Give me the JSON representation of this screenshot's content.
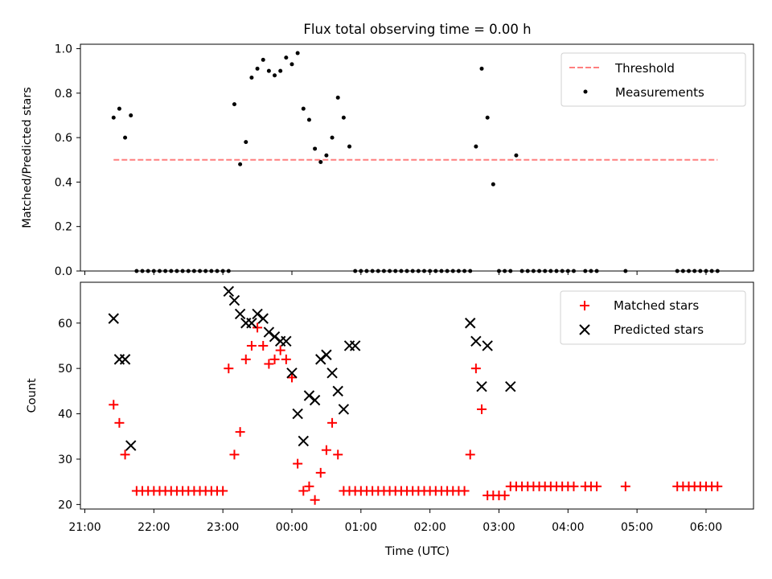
{
  "title": "Flux total observing time = 0.00 h",
  "chart_data": [
    {
      "type": "scatter",
      "ylabel": "Matched/Predicted stars",
      "xlabel": "",
      "ylim": [
        0.0,
        1.02
      ],
      "y_ticks": [
        "0.0",
        "0.2",
        "0.4",
        "0.6",
        "0.8",
        "1.0"
      ],
      "legend_position": "top-right",
      "grid": false,
      "series": [
        {
          "name": "Threshold",
          "style": "dashed-line",
          "color": "#ff7f7f",
          "x": [
            "21:25",
            "06:10"
          ],
          "y": [
            0.5,
            0.5
          ]
        },
        {
          "name": "Measurements",
          "style": "dot",
          "color": "#000000",
          "x": [
            "21:25",
            "21:30",
            "21:35",
            "21:40",
            "21:45",
            "21:50",
            "21:55",
            "22:00",
            "22:05",
            "22:10",
            "22:15",
            "22:20",
            "22:25",
            "22:30",
            "22:35",
            "22:40",
            "22:45",
            "22:50",
            "22:55",
            "23:00",
            "23:05",
            "23:10",
            "23:15",
            "23:20",
            "23:25",
            "23:30",
            "23:35",
            "23:40",
            "23:45",
            "23:50",
            "23:55",
            "00:00",
            "00:05",
            "00:10",
            "00:15",
            "00:20",
            "00:25",
            "00:30",
            "00:35",
            "00:40",
            "00:45",
            "00:50",
            "00:55",
            "01:00",
            "01:05",
            "01:10",
            "01:15",
            "01:20",
            "01:25",
            "01:30",
            "01:35",
            "01:40",
            "01:45",
            "01:50",
            "01:55",
            "02:00",
            "02:05",
            "02:10",
            "02:15",
            "02:20",
            "02:25",
            "02:30",
            "02:35",
            "02:40",
            "02:45",
            "02:50",
            "02:55",
            "03:00",
            "03:05",
            "03:10",
            "03:15",
            "03:20",
            "03:25",
            "03:30",
            "03:35",
            "03:40",
            "03:45",
            "03:50",
            "03:55",
            "04:00",
            "04:05",
            "04:15",
            "04:20",
            "04:25",
            "04:50",
            "05:35",
            "05:40",
            "05:45",
            "05:50",
            "05:55",
            "06:00",
            "06:05",
            "06:10"
          ],
          "y": [
            0.69,
            0.73,
            0.6,
            0.7,
            0,
            0,
            0,
            0,
            0,
            0,
            0,
            0,
            0,
            0,
            0,
            0,
            0,
            0,
            0,
            0,
            0,
            0.75,
            0.48,
            0.58,
            0.87,
            0.91,
            0.95,
            0.9,
            0.88,
            0.9,
            0.96,
            0.93,
            0.98,
            0.73,
            0.68,
            0.55,
            0.49,
            0.52,
            0.6,
            0.78,
            0.69,
            0.56,
            0,
            0,
            0,
            0,
            0,
            0,
            0,
            0,
            0,
            0,
            0,
            0,
            0,
            0,
            0,
            0,
            0,
            0,
            0,
            0,
            0,
            0.56,
            0.91,
            0.69,
            0.39,
            0,
            0,
            0,
            0.52,
            0,
            0,
            0,
            0,
            0,
            0,
            0,
            0,
            0,
            0,
            0,
            0,
            0,
            0,
            0,
            0,
            0,
            0,
            0,
            0,
            0,
            0
          ]
        }
      ]
    },
    {
      "type": "scatter",
      "ylabel": "Count",
      "xlabel": "Time (UTC)",
      "ylim": [
        19,
        69
      ],
      "y_ticks": [
        "20",
        "30",
        "40",
        "50",
        "60"
      ],
      "x_ticks": [
        "21:00",
        "22:00",
        "23:00",
        "00:00",
        "01:00",
        "02:00",
        "03:00",
        "04:00",
        "05:00",
        "06:00"
      ],
      "legend_position": "top-right",
      "grid": false,
      "series": [
        {
          "name": "Matched stars",
          "marker": "plus",
          "color": "#ff0000",
          "x": [
            "21:25",
            "21:30",
            "21:35",
            "21:45",
            "21:50",
            "21:55",
            "22:00",
            "22:05",
            "22:10",
            "22:15",
            "22:20",
            "22:25",
            "22:30",
            "22:35",
            "22:40",
            "22:45",
            "22:50",
            "22:55",
            "23:00",
            "23:05",
            "23:10",
            "23:15",
            "23:20",
            "23:25",
            "23:30",
            "23:35",
            "23:40",
            "23:45",
            "23:50",
            "23:55",
            "00:00",
            "00:05",
            "00:10",
            "00:15",
            "00:20",
            "00:25",
            "00:30",
            "00:35",
            "00:40",
            "00:45",
            "00:50",
            "00:55",
            "01:00",
            "01:05",
            "01:10",
            "01:15",
            "01:20",
            "01:25",
            "01:30",
            "01:35",
            "01:40",
            "01:45",
            "01:50",
            "01:55",
            "02:00",
            "02:05",
            "02:10",
            "02:15",
            "02:20",
            "02:25",
            "02:30",
            "02:35",
            "02:40",
            "02:45",
            "02:50",
            "02:55",
            "03:00",
            "03:05",
            "03:10",
            "03:15",
            "03:20",
            "03:25",
            "03:30",
            "03:35",
            "03:40",
            "03:45",
            "03:50",
            "03:55",
            "04:00",
            "04:05",
            "04:15",
            "04:20",
            "04:25",
            "04:50",
            "05:35",
            "05:40",
            "05:45",
            "05:50",
            "05:55",
            "06:00",
            "06:05",
            "06:10"
          ],
          "y": [
            42,
            38,
            31,
            23,
            23,
            23,
            23,
            23,
            23,
            23,
            23,
            23,
            23,
            23,
            23,
            23,
            23,
            23,
            23,
            50,
            31,
            36,
            52,
            55,
            59,
            55,
            51,
            52,
            54,
            52,
            48,
            29,
            23,
            24,
            21,
            27,
            32,
            38,
            31,
            23,
            23,
            23,
            23,
            23,
            23,
            23,
            23,
            23,
            23,
            23,
            23,
            23,
            23,
            23,
            23,
            23,
            23,
            23,
            23,
            23,
            23,
            31,
            50,
            41,
            22,
            22,
            22,
            22,
            24,
            24,
            24,
            24,
            24,
            24,
            24,
            24,
            24,
            24,
            24,
            24,
            24,
            24,
            24,
            24,
            24,
            24,
            24,
            24,
            24,
            24,
            24,
            24
          ]
        },
        {
          "name": "Predicted stars",
          "marker": "x",
          "color": "#000000",
          "x": [
            "21:25",
            "21:30",
            "21:35",
            "21:40",
            "23:05",
            "23:10",
            "23:15",
            "23:20",
            "23:25",
            "23:30",
            "23:35",
            "23:40",
            "23:45",
            "23:50",
            "23:55",
            "00:00",
            "00:05",
            "00:10",
            "00:15",
            "00:20",
            "00:25",
            "00:30",
            "00:35",
            "00:40",
            "00:45",
            "00:50",
            "00:55",
            "02:35",
            "02:40",
            "02:45",
            "02:50",
            "03:10"
          ],
          "y": [
            61,
            52,
            52,
            33,
            67,
            65,
            62,
            60,
            60,
            62,
            61,
            58,
            57,
            56,
            56,
            49,
            40,
            34,
            44,
            43,
            52,
            53,
            49,
            45,
            41,
            55,
            55,
            60,
            56,
            46,
            55,
            46
          ]
        }
      ]
    }
  ]
}
